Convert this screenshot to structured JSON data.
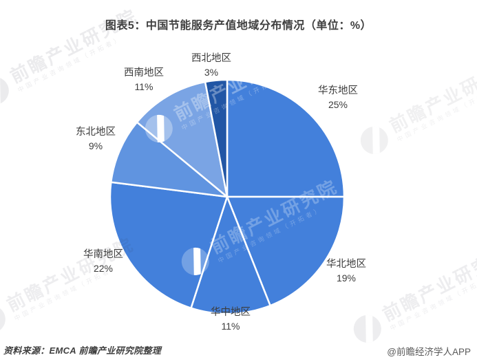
{
  "title": "图表5：中国节能服务产值地域分布情况（单位：%）",
  "chart_data": {
    "type": "pie",
    "title": "图表5：中国节能服务产值地域分布情况（单位：%）",
    "unit": "%",
    "start_angle_deg": 0,
    "direction": "clockwise",
    "divider_color": "#FFFFFF",
    "categories": [
      "华东地区",
      "华北地区",
      "华中地区",
      "华南地区",
      "东北地区",
      "西南地区",
      "西北地区"
    ],
    "values": [
      25,
      19,
      11,
      22,
      9,
      11,
      3
    ],
    "slices": [
      {
        "label": "华东地区",
        "value": 25,
        "color": "#4380DB"
      },
      {
        "label": "华北地区",
        "value": 19,
        "color": "#4380DB"
      },
      {
        "label": "华中地区",
        "value": 11,
        "color": "#4380DB"
      },
      {
        "label": "华南地区",
        "value": 22,
        "color": "#4380DB"
      },
      {
        "label": "东北地区",
        "value": 9,
        "color": "#6094E0"
      },
      {
        "label": "西南地区",
        "value": 11,
        "color": "#7AA4E4"
      },
      {
        "label": "西北地区",
        "value": 3,
        "color": "#2156A5"
      }
    ]
  },
  "footer": {
    "source": "资料来源：EMCA 前瞻产业研究院整理",
    "credit": "@前瞻经济学人APP"
  },
  "watermark": {
    "text": "前瞻产业研究院",
    "subtext": "中国产业咨询领域（开拓者）"
  }
}
